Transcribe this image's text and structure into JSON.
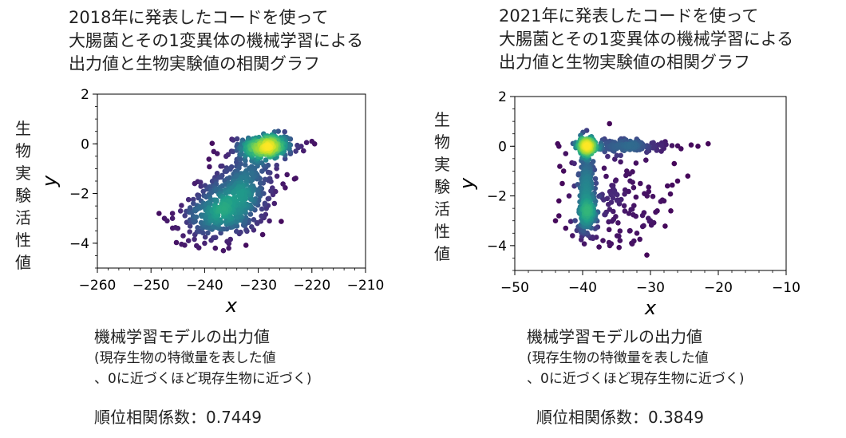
{
  "panels": [
    {
      "title_lines": [
        "2018年に発表したコードを使って",
        "大腸菌とその1変異体の機械学習による",
        "出力値と生物実験値の相関グラフ"
      ],
      "y_label_jp": "生物実験活性値",
      "caption_main": "機械学習モデルの出力値",
      "caption_sub1": "(現存生物の特徴量を表した値",
      "caption_sub2": "、0に近づくほど現存生物に近づく)",
      "correlation": "順位相関係数：0.7449"
    },
    {
      "title_lines": [
        "2021年に発表したコードを使って",
        "大腸菌とその1変異体の機械学習による",
        "出力値と生物実験値の相関グラフ"
      ],
      "y_label_jp": "生物実験活性値",
      "caption_main": "機械学習モデルの出力値",
      "caption_sub1": "(現存生物の特徴量を表した値",
      "caption_sub2": "、0に近づくほど現存生物に近づく)",
      "correlation": "順位相関係数：0.3849"
    }
  ],
  "chart_data": [
    {
      "type": "scatter",
      "xlabel": "x",
      "ylabel": "y",
      "xlim": [
        -260,
        -210
      ],
      "ylim": [
        -5,
        2
      ],
      "xticks": [
        -260,
        -250,
        -240,
        -230,
        -220,
        -210
      ],
      "yticks": [
        -4,
        -2,
        0,
        2
      ],
      "colormap": "viridis",
      "clusters": [
        {
          "center": [
            -228.5,
            -0.1
          ],
          "spread": [
            2.5,
            0.25
          ],
          "count": 260
        },
        {
          "center": [
            -235.5,
            -2.5
          ],
          "spread": [
            3.5,
            0.55
          ],
          "count": 320
        },
        {
          "center": [
            -232.0,
            -1.3
          ],
          "spread": [
            3.0,
            0.6
          ],
          "count": 160
        },
        {
          "center": [
            -239.0,
            -3.2
          ],
          "spread": [
            3.0,
            0.4
          ],
          "count": 80
        }
      ],
      "points": [
        [
          -248.5,
          -2.8
        ],
        [
          -247.0,
          -3.1
        ],
        [
          -246.0,
          -3.0
        ],
        [
          -245.0,
          -3.4
        ],
        [
          -244.0,
          -3.7
        ],
        [
          -243.0,
          -3.9
        ],
        [
          -241.5,
          -4.1
        ],
        [
          -240.0,
          -4.0
        ],
        [
          -238.0,
          -4.2
        ],
        [
          -236.5,
          -4.3
        ],
        [
          -235.5,
          -4.2
        ],
        [
          -244.5,
          -2.7
        ],
        [
          -247.5,
          -3.0
        ],
        [
          -246.0,
          -2.8
        ],
        [
          -219.5,
          -0.0
        ],
        [
          -220.0,
          0.1
        ],
        [
          -221.0,
          0.05
        ],
        [
          -222.0,
          -0.1
        ],
        [
          -223.0,
          -0.3
        ],
        [
          -224.0,
          -0.4
        ],
        [
          -225.0,
          -0.6
        ],
        [
          -226.5,
          -1.3
        ],
        [
          -227.0,
          -2.4
        ],
        [
          -228.0,
          -2.2
        ],
        [
          -229.0,
          -2.0
        ],
        [
          -230.0,
          -2.3
        ],
        [
          -231.0,
          -2.6
        ],
        [
          -229.5,
          -1.8
        ],
        [
          -228.5,
          -2.6
        ],
        [
          -232.0,
          0.1
        ],
        [
          -231.0,
          0.2
        ],
        [
          -229.0,
          0.4
        ],
        [
          -227.0,
          0.3
        ],
        [
          -225.5,
          0.2
        ],
        [
          -234.0,
          -0.1
        ],
        [
          -233.0,
          0.05
        ],
        [
          -235.0,
          -0.3
        ],
        [
          -236.0,
          -0.5
        ],
        [
          -237.0,
          -0.9
        ]
      ]
    },
    {
      "type": "scatter",
      "xlabel": "x",
      "ylabel": "y",
      "xlim": [
        -50,
        -10
      ],
      "ylim": [
        -5,
        2
      ],
      "xticks": [
        -50,
        -40,
        -30,
        -20,
        -10
      ],
      "yticks": [
        -4,
        -2,
        0,
        2
      ],
      "colormap": "viridis",
      "clusters": [
        {
          "center": [
            -39.5,
            0.0
          ],
          "spread": [
            0.6,
            0.18
          ],
          "count": 220
        },
        {
          "center": [
            -39.5,
            -2.7
          ],
          "spread": [
            0.6,
            0.45
          ],
          "count": 200
        },
        {
          "center": [
            -39.5,
            -1.4
          ],
          "spread": [
            0.5,
            0.55
          ],
          "count": 140
        },
        {
          "center": [
            -34.0,
            0.0
          ],
          "spread": [
            3.5,
            0.12
          ],
          "count": 160
        },
        {
          "center": [
            -35.0,
            -2.2
          ],
          "spread": [
            3.0,
            1.0
          ],
          "count": 120
        }
      ],
      "points": [
        [
          -43.5,
          0.0
        ],
        [
          -42.5,
          -0.3
        ],
        [
          -43.0,
          -1.5
        ],
        [
          -42.0,
          -2.0
        ],
        [
          -43.5,
          -2.8
        ],
        [
          -44.0,
          -3.0
        ],
        [
          -42.5,
          -3.3
        ],
        [
          -41.5,
          -3.6
        ],
        [
          -42.8,
          -1.0
        ],
        [
          -43.5,
          -2.2
        ],
        [
          -21.5,
          0.1
        ],
        [
          -23.0,
          0.0
        ],
        [
          -24.0,
          0.05
        ],
        [
          -25.5,
          -0.1
        ],
        [
          -24.5,
          -1.2
        ],
        [
          -26.0,
          -1.4
        ],
        [
          -27.5,
          -1.6
        ],
        [
          -28.0,
          -2.2
        ],
        [
          -29.0,
          -2.6
        ],
        [
          -30.0,
          -3.0
        ],
        [
          -31.0,
          -3.2
        ],
        [
          -32.0,
          -3.5
        ],
        [
          -33.0,
          -3.4
        ],
        [
          -34.5,
          -3.8
        ],
        [
          -36.0,
          -4.0
        ],
        [
          -37.0,
          -3.8
        ],
        [
          -30.5,
          -2.0
        ],
        [
          -31.5,
          -1.5
        ],
        [
          -33.5,
          -1.0
        ],
        [
          -35.5,
          -1.7
        ],
        [
          -34.5,
          0.25
        ],
        [
          -33.0,
          0.2
        ],
        [
          -36.0,
          0.2
        ],
        [
          -26.5,
          -0.7
        ],
        [
          -27.0,
          -2.6
        ]
      ]
    }
  ]
}
